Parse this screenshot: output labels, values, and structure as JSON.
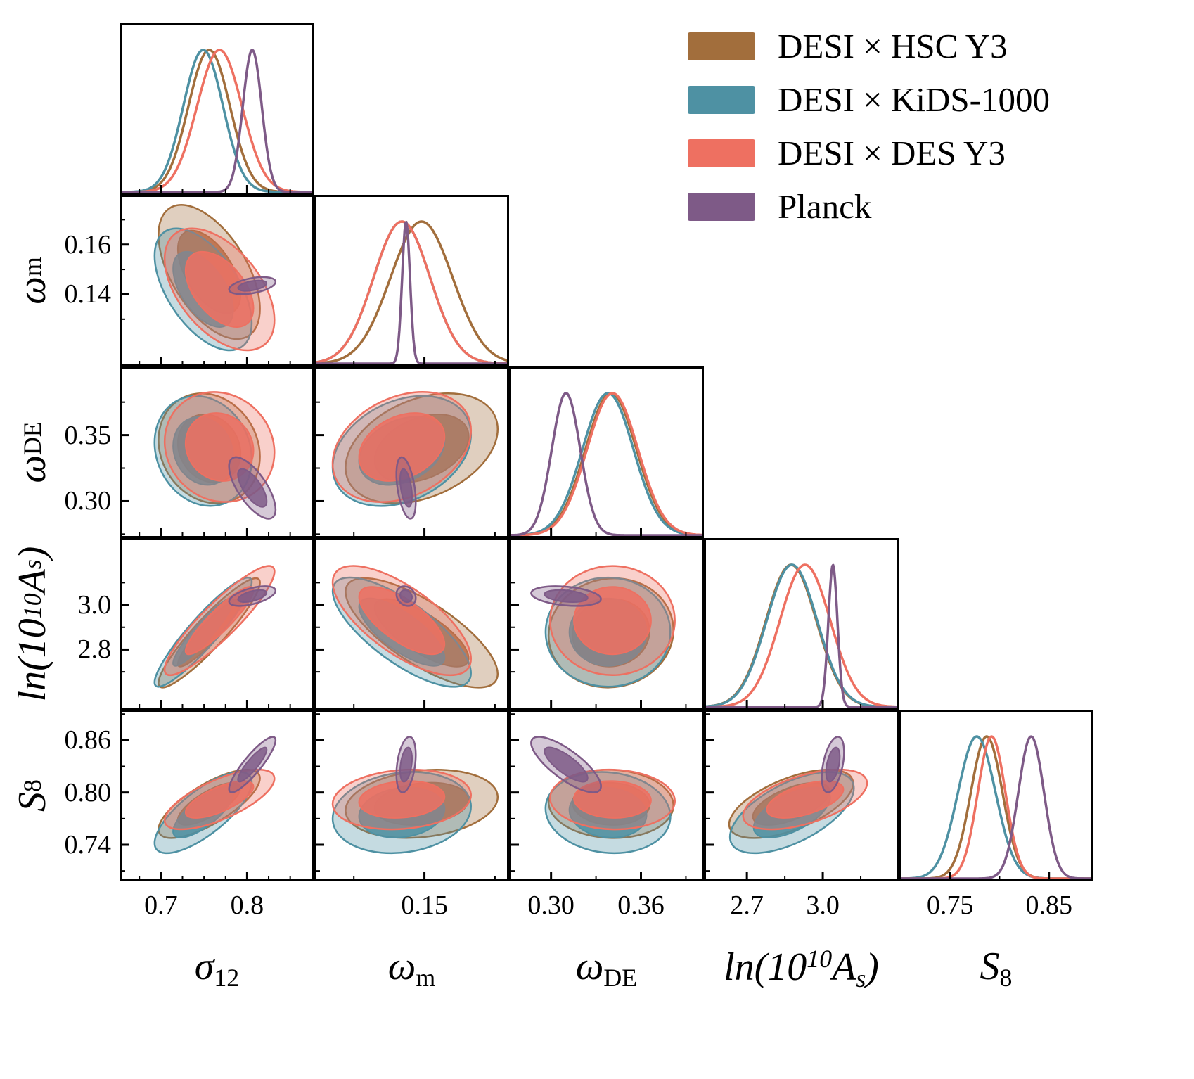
{
  "legend": {
    "entries": [
      {
        "label": "DESI × HSC Y3",
        "color": "#A26E3C"
      },
      {
        "label": "DESI × KiDS-1000",
        "color": "#4E91A3"
      },
      {
        "label": "DESI × DES Y3",
        "color": "#EE7061"
      },
      {
        "label": "Planck",
        "color": "#7E5A87"
      }
    ]
  },
  "chart_data": {
    "type": "corner_plot",
    "description": "Triangle (corner) plot of marginalized posterior constraints: 1D Gaussian densities on the diagonal, filled 68%/95% confidence ellipses off-diagonal.",
    "contour_levels": [
      0.68,
      0.95
    ],
    "background": "#ffffff",
    "parameters": [
      {
        "key": "sigma12",
        "label_text": "sigma_12",
        "range": [
          0.652,
          0.878
        ],
        "label_segments": [
          {
            "t": "σ",
            "s": "i"
          },
          {
            "t": "12",
            "s": "sub"
          }
        ],
        "ticks": {
          "x": {
            "major": [
              0.7,
              0.8
            ],
            "labels": [
              "0.7",
              "0.8"
            ],
            "minor": [
              0.675,
              0.725,
              0.75,
              0.775,
              0.825,
              0.85
            ]
          },
          "y": {
            "major": [],
            "labels": [],
            "minor": []
          }
        }
      },
      {
        "key": "omega_m",
        "label_text": "omega_m",
        "range": [
          0.111,
          0.18
        ],
        "label_segments": [
          {
            "t": "ω",
            "s": "i"
          },
          {
            "t": "m",
            "s": "sub"
          }
        ],
        "ticks": {
          "x": {
            "major": [
              0.15
            ],
            "labels": [
              "0.15"
            ],
            "minor": [
              0.125,
              0.175
            ]
          },
          "y": {
            "major": [
              0.14,
              0.16
            ],
            "labels": [
              "0.14",
              "0.16"
            ],
            "minor": [
              0.13,
              0.15,
              0.17
            ]
          }
        }
      },
      {
        "key": "omega_de",
        "label_text": "omega_DE",
        "range": [
          0.272,
          0.402
        ],
        "label_segments": [
          {
            "t": "ω",
            "s": "i"
          },
          {
            "t": "DE",
            "s": "sub"
          }
        ],
        "ticks": {
          "x": {
            "major": [
              0.3,
              0.36
            ],
            "labels": [
              "0.30",
              "0.36"
            ],
            "minor": [
              0.33,
              0.39
            ]
          },
          "y": {
            "major": [
              0.3,
              0.35
            ],
            "labels": [
              "0.30",
              "0.35"
            ],
            "minor": [
              0.275,
              0.325,
              0.375
            ]
          }
        }
      },
      {
        "key": "ln10As",
        "label_text": "ln(10^10 A_s)",
        "range": [
          2.53,
          3.3
        ],
        "label_segments": [
          {
            "t": "ln(10",
            "s": "i"
          },
          {
            "t": "10",
            "s": "sup"
          },
          {
            "t": "A",
            "s": "i"
          },
          {
            "t": "s",
            "s": "isub"
          },
          {
            "t": ")",
            "s": "i"
          }
        ],
        "ticks": {
          "x": {
            "major": [
              2.7,
              3.0
            ],
            "labels": [
              "2.7",
              "3.0"
            ],
            "minor": [
              2.85,
              3.15
            ]
          },
          "y": {
            "major": [
              2.8,
              3.0
            ],
            "labels": [
              "2.8",
              "3.0"
            ],
            "minor": [
              2.7,
              2.9,
              3.1
            ]
          }
        }
      },
      {
        "key": "S8",
        "label_text": "S_8",
        "range": [
          0.698,
          0.895
        ],
        "label_segments": [
          {
            "t": "S",
            "s": "i"
          },
          {
            "t": "8",
            "s": "sub"
          }
        ],
        "ticks": {
          "x": {
            "major": [
              0.75,
              0.85
            ],
            "labels": [
              "0.75",
              "0.85"
            ],
            "minor": [
              0.7,
              0.8
            ]
          },
          "y": {
            "major": [
              0.74,
              0.8,
              0.86
            ],
            "labels": [
              "0.74",
              "0.80",
              "0.86"
            ],
            "minor": [
              0.71,
              0.77,
              0.83,
              0.89
            ]
          }
        }
      }
    ],
    "datasets": [
      {
        "key": "hsc",
        "name": "DESI × HSC Y3",
        "color": "#A26E3C",
        "params": {
          "sigma12": {
            "mean": 0.756,
            "sigma": 0.024
          },
          "omega_m": {
            "mean": 0.149,
            "sigma": 0.011
          },
          "omega_de": {
            "mean": 0.34,
            "sigma": 0.017
          },
          "ln10As": {
            "mean": 2.875,
            "sigma": 0.1
          },
          "S8": {
            "mean": 0.787,
            "sigma": 0.016
          }
        },
        "correlations": {
          "sigma12:omega_m": -0.55,
          "sigma12:omega_de": -0.15,
          "sigma12:ln10As": 0.92,
          "sigma12:S8": 0.75,
          "omega_m:omega_de": 0.35,
          "omega_m:ln10As": -0.75,
          "omega_m:S8": 0.2,
          "omega_de:ln10As": 0.05,
          "omega_de:S8": -0.05,
          "ln10As:S8": 0.6
        }
      },
      {
        "key": "kids",
        "name": "DESI × KiDS-1000",
        "color": "#4E91A3",
        "params": {
          "sigma12": {
            "mean": 0.749,
            "sigma": 0.023
          },
          "omega_m": {
            "mean": 0.142,
            "sigma": 0.01
          },
          "omega_de": {
            "mean": 0.338,
            "sigma": 0.017
          },
          "ln10As": {
            "mean": 2.878,
            "sigma": 0.1
          },
          "S8": {
            "mean": 0.777,
            "sigma": 0.019
          }
        },
        "correlations": {
          "sigma12:omega_m": -0.55,
          "sigma12:omega_de": -0.15,
          "sigma12:ln10As": 0.92,
          "sigma12:S8": 0.75,
          "omega_m:omega_de": 0.3,
          "omega_m:ln10As": -0.75,
          "omega_m:S8": 0.15,
          "omega_de:ln10As": 0.0,
          "omega_de:S8": -0.1,
          "ln10As:S8": 0.6
        }
      },
      {
        "key": "des",
        "name": "DESI × DES Y3",
        "color": "#EE7061",
        "params": {
          "sigma12": {
            "mean": 0.768,
            "sigma": 0.026
          },
          "omega_m": {
            "mean": 0.142,
            "sigma": 0.01
          },
          "omega_de": {
            "mean": 0.341,
            "sigma": 0.017
          },
          "ln10As": {
            "mean": 2.93,
            "sigma": 0.1
          },
          "S8": {
            "mean": 0.792,
            "sigma": 0.014
          }
        },
        "correlations": {
          "sigma12:omega_m": -0.5,
          "sigma12:omega_de": -0.1,
          "sigma12:ln10As": 0.9,
          "sigma12:S8": 0.7,
          "omega_m:omega_de": 0.3,
          "omega_m:ln10As": -0.7,
          "omega_m:S8": 0.15,
          "omega_de:ln10As": 0.0,
          "omega_de:S8": -0.05,
          "ln10As:S8": 0.55
        }
      },
      {
        "key": "planck",
        "name": "Planck",
        "color": "#7E5A87",
        "params": {
          "sigma12": {
            "mean": 0.806,
            "sigma": 0.011
          },
          "omega_m": {
            "mean": 0.1435,
            "sigma": 0.0014
          },
          "omega_de": {
            "mean": 0.31,
            "sigma": 0.0095
          },
          "ln10As": {
            "mean": 3.04,
            "sigma": 0.018
          },
          "S8": {
            "mean": 0.832,
            "sigma": 0.013
          }
        },
        "correlations": {
          "sigma12:omega_m": 0.45,
          "sigma12:omega_de": -0.7,
          "sigma12:ln10As": 0.55,
          "sigma12:S8": 0.88,
          "omega_m:omega_de": -0.45,
          "omega_m:ln10As": -0.2,
          "omega_m:S8": 0.35,
          "omega_de:ln10As": -0.3,
          "omega_de:S8": -0.78,
          "ln10As:S8": 0.45
        }
      }
    ]
  }
}
